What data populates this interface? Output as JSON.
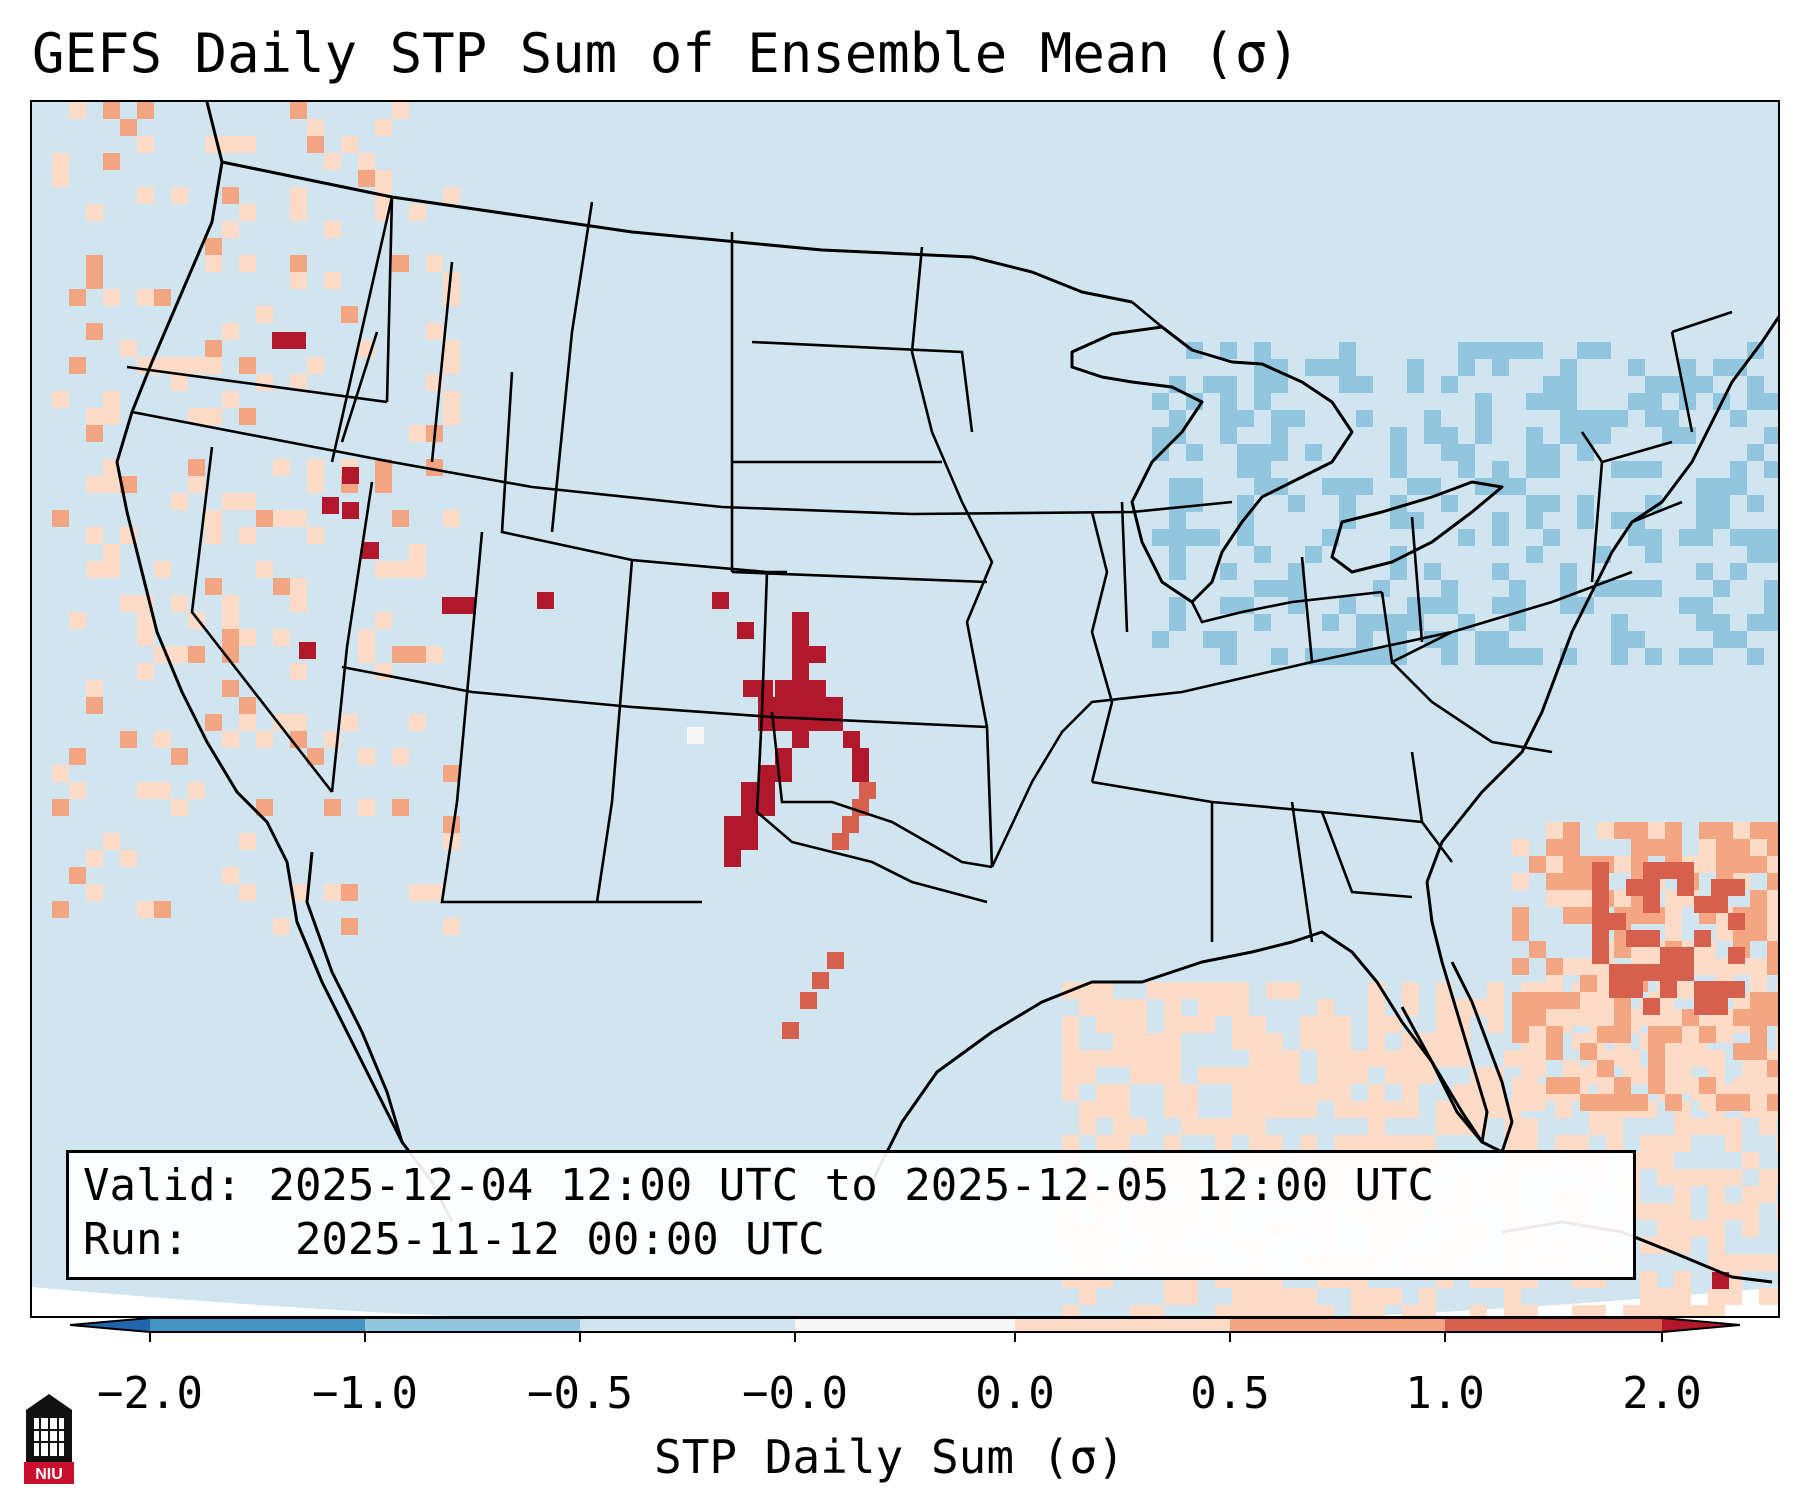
{
  "title": "GEFS Daily STP Sum of Ensemble Mean (σ)",
  "info": {
    "valid_label": "Valid:",
    "valid_value": "2025-12-04 12:00 UTC to 2025-12-05 12:00 UTC",
    "run_label": "Run:",
    "run_value": "2025-11-12 00:00 UTC"
  },
  "colorbar": {
    "label": "STP Daily Sum (σ)",
    "ticks": [
      "−2.0",
      "−1.0",
      "−0.5",
      "−0.0",
      "0.0",
      "0.5",
      "1.0",
      "2.0"
    ],
    "bins": [
      {
        "color": "#2166ac"
      },
      {
        "color": "#4393c3"
      },
      {
        "color": "#92c5de"
      },
      {
        "color": "#d1e5f0"
      },
      {
        "color": "#f7f7f7"
      },
      {
        "color": "#fddbc7"
      },
      {
        "color": "#f4a582"
      },
      {
        "color": "#d6604d"
      },
      {
        "color": "#b2182b"
      }
    ]
  },
  "map": {
    "background_color": "#d1e5f0",
    "region": "Contiguous United States"
  },
  "logo": {
    "text": "NIU"
  }
}
